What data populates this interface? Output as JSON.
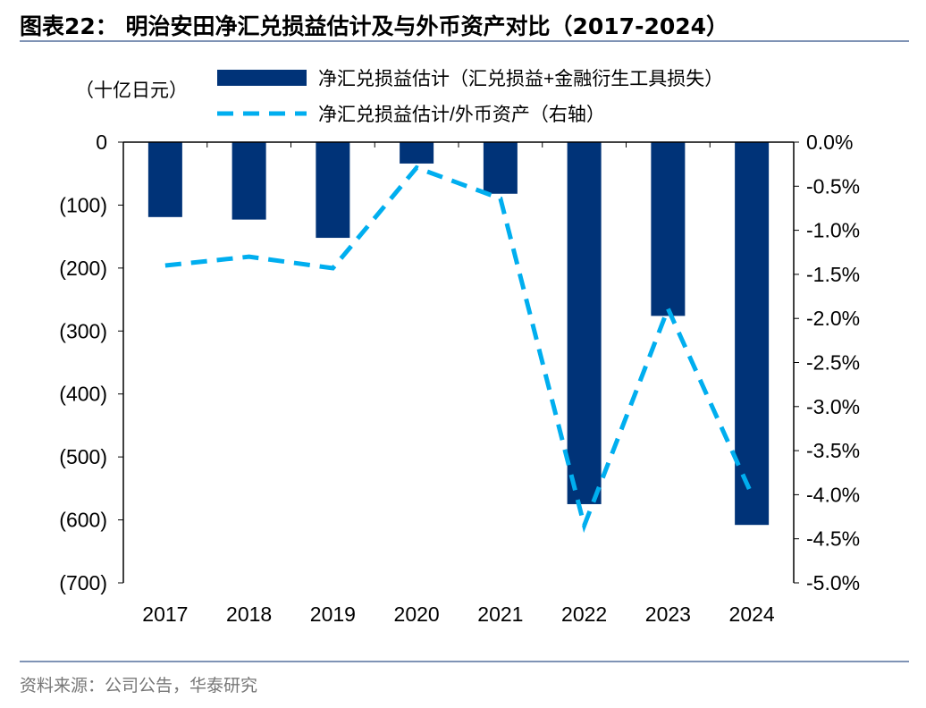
{
  "title": "图表22：  明治安田净汇兑损益估计及与外币资产对比（2017-2024）",
  "source": "资料来源：公司公告，华泰研究",
  "chart_data": {
    "type": "bar+line",
    "categories": [
      "2017",
      "2018",
      "2019",
      "2020",
      "2021",
      "2022",
      "2023",
      "2024"
    ],
    "left_unit_label": "（十亿日元）",
    "series": [
      {
        "name": "净汇兑损益估计（汇兑损益+金融衍生工具损失）",
        "type": "bar",
        "axis": "left",
        "color": "#003378",
        "values": [
          -119,
          -123,
          -152,
          -34,
          -82,
          -575,
          -276,
          -608
        ]
      },
      {
        "name": "净汇兑损益估计/外币资产（右轴）",
        "type": "line",
        "style": "dashed",
        "axis": "right",
        "color": "#00aeef",
        "values": [
          -1.4,
          -1.3,
          -1.43,
          -0.29,
          -0.64,
          -4.35,
          -1.89,
          -4.0
        ]
      }
    ],
    "left_axis": {
      "ylim": [
        -700,
        0
      ],
      "ticks": [
        "0",
        "(100)",
        "(200)",
        "(300)",
        "(400)",
        "(500)",
        "(600)",
        "(700)"
      ]
    },
    "right_axis": {
      "ylim": [
        -5.0,
        0.0
      ],
      "unit": "%",
      "ticks": [
        "0.0%",
        "-0.5%",
        "-1.0%",
        "-1.5%",
        "-2.0%",
        "-2.5%",
        "-3.0%",
        "-3.5%",
        "-4.0%",
        "-4.5%",
        "-5.0%"
      ]
    },
    "grid": false,
    "legend": "top"
  }
}
